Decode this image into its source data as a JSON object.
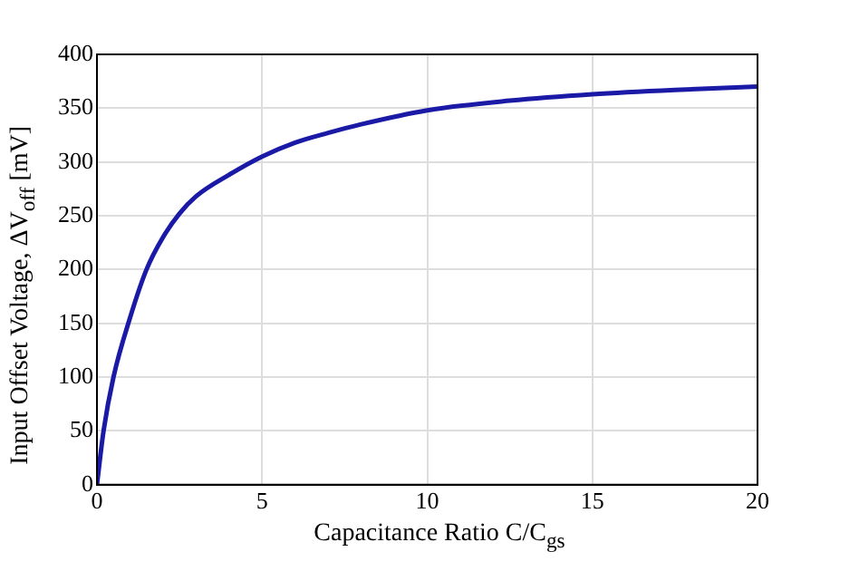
{
  "chart_data": {
    "type": "line",
    "xlabel": "Capacitance Ratio C/C$_{gs}$",
    "ylabel": "Input Offset Voltage, ΔV$_{off}$ [mV]",
    "series": [
      {
        "color": "#1a1aa6",
        "x": [
          0,
          0.2,
          0.5,
          1,
          1.5,
          2,
          2.5,
          3,
          4,
          5,
          6,
          7,
          8,
          10,
          12.5,
          15,
          17.5,
          20
        ],
        "values": [
          0,
          50,
          100,
          155,
          200,
          230,
          252,
          268,
          288,
          305,
          318,
          327,
          335,
          348,
          357,
          363,
          367,
          370
        ]
      }
    ],
    "xlim": [
      0,
      20
    ],
    "xticks": [
      0,
      5,
      10,
      15,
      20
    ],
    "ylim": [
      0,
      400
    ],
    "yticks": [
      0,
      50,
      100,
      150,
      200,
      250,
      300,
      350,
      400
    ],
    "grid": true,
    "legend": false,
    "marker": "none",
    "line_style": "solid"
  }
}
